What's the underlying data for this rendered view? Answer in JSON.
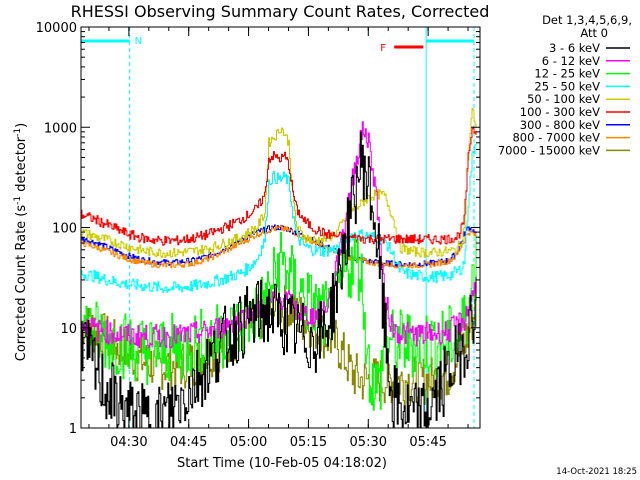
{
  "chart_data": {
    "type": "line",
    "title": "RHESSI Observing Summary Count Rates, Corrected",
    "xlabel": "Start Time (10-Feb-05 04:18:02)",
    "ylabel_main": "Corrected Count Rate (s",
    "ylabel_sup1": "-1",
    "ylabel_mid": " detector",
    "ylabel_sup2": "-1",
    "ylabel_end": ")",
    "x_unit": "minutes after 04:18:02",
    "xlim": [
      0,
      100
    ],
    "ylim": [
      1,
      10000
    ],
    "yscale": "log",
    "x_ticks": [
      {
        "value": 12,
        "label": "04:30"
      },
      {
        "value": 27,
        "label": "04:45"
      },
      {
        "value": 42,
        "label": "05:00"
      },
      {
        "value": 57,
        "label": "05:15"
      },
      {
        "value": 72,
        "label": "05:30"
      },
      {
        "value": 87,
        "label": "05:45"
      }
    ],
    "y_ticks": [
      {
        "value": 1,
        "label": "1"
      },
      {
        "value": 10,
        "label": "10"
      },
      {
        "value": 100,
        "label": "100"
      },
      {
        "value": 1000,
        "label": "1000"
      },
      {
        "value": 10000,
        "label": "10000"
      }
    ],
    "legend_header": [
      "Det 1,3,4,5,6,9,",
      "Att 0"
    ],
    "series": [
      {
        "name": "3 - 6 keV",
        "color": "#000000",
        "x": [
          0,
          2,
          4,
          6,
          8,
          10,
          12,
          14,
          16,
          18,
          20,
          22,
          24,
          26,
          28,
          30,
          32,
          34,
          36,
          38,
          40,
          42,
          44,
          46,
          48,
          50,
          52,
          54,
          56,
          58,
          60,
          62,
          64,
          66,
          68,
          69,
          70,
          71,
          72,
          73,
          74,
          75,
          76,
          77,
          78,
          80,
          82,
          84,
          86,
          88,
          90,
          92,
          94,
          95,
          96,
          97,
          98,
          99
        ],
        "y": [
          8,
          5,
          3.5,
          2.5,
          2,
          1.6,
          1.4,
          1.3,
          1.2,
          1.2,
          1.3,
          1.5,
          1.8,
          2.2,
          2.8,
          3.5,
          4.5,
          6,
          7.5,
          9,
          10.5,
          12,
          13.5,
          14.5,
          14,
          12.5,
          10.5,
          9,
          8,
          7.5,
          8.5,
          12,
          25,
          70,
          160,
          280,
          450,
          400,
          260,
          160,
          80,
          30,
          10,
          4,
          2,
          1.6,
          1.4,
          1.3,
          1.4,
          1.8,
          2.5,
          3.5,
          5,
          6,
          7,
          9,
          14,
          18
        ]
      },
      {
        "name": "6 - 12 keV",
        "color": "#ff00ff",
        "x": [
          0,
          4,
          8,
          12,
          16,
          20,
          24,
          28,
          32,
          36,
          40,
          44,
          48,
          50,
          52,
          54,
          56,
          58,
          60,
          62,
          64,
          66,
          68,
          70,
          71,
          72,
          73,
          74,
          75,
          76,
          78,
          80,
          84,
          88,
          92,
          96,
          98,
          99
        ],
        "y": [
          11,
          9.5,
          8.8,
          8.3,
          8.2,
          8.2,
          8.3,
          8.6,
          9.3,
          10.5,
          12.5,
          15,
          18,
          20,
          18,
          15,
          13.5,
          13,
          14,
          18,
          40,
          110,
          300,
          800,
          950,
          700,
          400,
          200,
          60,
          20,
          10,
          8.8,
          8.6,
          8.7,
          9.2,
          12,
          20,
          30
        ]
      },
      {
        "name": "12 - 25 keV",
        "color": "#00ff00",
        "x": [
          0,
          4,
          8,
          12,
          16,
          20,
          24,
          28,
          32,
          36,
          40,
          42,
          44,
          46,
          48,
          50,
          52,
          54,
          56,
          58,
          60,
          62,
          64,
          66,
          68,
          70,
          71,
          72,
          73,
          74,
          75,
          76,
          78,
          80,
          84,
          88,
          92,
          95,
          97,
          98,
          99
        ],
        "y": [
          11,
          8.5,
          7.5,
          6.5,
          6,
          6,
          6.3,
          6.8,
          7.5,
          8.5,
          10,
          12,
          14,
          18,
          28,
          48,
          35,
          25,
          20,
          16,
          14,
          13,
          18,
          35,
          45,
          40,
          12,
          4,
          3,
          2.5,
          3,
          8,
          7,
          7,
          7,
          7,
          7.5,
          9,
          15,
          30,
          50
        ]
      },
      {
        "name": "25 - 50 keV",
        "color": "#00ffff",
        "x": [
          0,
          4,
          8,
          12,
          16,
          20,
          24,
          28,
          32,
          36,
          40,
          42,
          44,
          46,
          47,
          48,
          49,
          50,
          51,
          52,
          53,
          54,
          56,
          58,
          60,
          62,
          64,
          66,
          68,
          70,
          72,
          74,
          76,
          78,
          80,
          84,
          88,
          92,
          95,
          96,
          97,
          98,
          99
        ],
        "y": [
          35,
          32,
          29,
          27,
          26,
          25,
          25,
          26,
          28,
          31,
          35,
          40,
          48,
          75,
          280,
          320,
          310,
          300,
          320,
          280,
          140,
          80,
          65,
          60,
          58,
          59,
          62,
          75,
          85,
          85,
          82,
          80,
          75,
          55,
          36,
          33,
          32,
          33,
          38,
          45,
          180,
          500,
          750
        ]
      },
      {
        "name": "50 - 100 keV",
        "color": "#cccc00",
        "x": [
          0,
          4,
          8,
          12,
          16,
          20,
          24,
          28,
          32,
          36,
          40,
          42,
          44,
          46,
          47,
          48,
          49,
          50,
          51,
          52,
          53,
          54,
          56,
          58,
          60,
          62,
          64,
          66,
          68,
          70,
          72,
          74,
          76,
          78,
          80,
          84,
          88,
          92,
          94,
          95,
          96,
          97,
          98,
          99
        ],
        "y": [
          90,
          80,
          72,
          64,
          58,
          56,
          56,
          58,
          62,
          70,
          80,
          90,
          100,
          140,
          700,
          780,
          850,
          1000,
          850,
          700,
          200,
          100,
          80,
          75,
          75,
          80,
          90,
          120,
          150,
          170,
          200,
          215,
          210,
          130,
          62,
          57,
          56,
          58,
          60,
          70,
          100,
          500,
          1500,
          1000
        ]
      },
      {
        "name": "100 - 300 keV",
        "color": "#ff0000",
        "x": [
          0,
          4,
          8,
          12,
          16,
          20,
          24,
          28,
          32,
          36,
          40,
          42,
          44,
          46,
          47,
          48,
          49,
          50,
          51,
          52,
          53,
          54,
          56,
          58,
          60,
          62,
          64,
          66,
          68,
          70,
          72,
          74,
          76,
          78,
          80,
          84,
          88,
          92,
          94,
          95,
          96,
          97,
          98,
          99
        ],
        "y": [
          135,
          118,
          100,
          85,
          77,
          74,
          74,
          78,
          86,
          100,
          120,
          135,
          155,
          210,
          480,
          520,
          500,
          480,
          520,
          420,
          230,
          150,
          115,
          100,
          90,
          85,
          82,
          80,
          79,
          78,
          77,
          77,
          77,
          77,
          77,
          76,
          76,
          77,
          80,
          90,
          120,
          500,
          1000,
          900
        ]
      },
      {
        "name": "300 - 800 keV",
        "color": "#0000ff",
        "x": [
          0,
          4,
          8,
          12,
          16,
          20,
          24,
          28,
          32,
          36,
          40,
          44,
          48,
          50,
          52,
          56,
          60,
          64,
          68,
          72,
          76,
          80,
          84,
          88,
          92,
          94,
          96,
          97,
          98,
          99
        ],
        "y": [
          78,
          70,
          60,
          52,
          47,
          45,
          45,
          47,
          52,
          62,
          75,
          90,
          100,
          100,
          96,
          82,
          68,
          58,
          50,
          46,
          44,
          43,
          43,
          44,
          47,
          55,
          85,
          100,
          95,
          85
        ]
      },
      {
        "name": "800 - 7000 keV",
        "color": "#ff8800",
        "x": [
          0,
          4,
          8,
          12,
          16,
          20,
          24,
          28,
          32,
          36,
          40,
          44,
          48,
          50,
          52,
          56,
          60,
          64,
          68,
          72,
          76,
          80,
          84,
          88,
          92,
          94,
          96,
          97,
          98,
          99
        ],
        "y": [
          70,
          63,
          55,
          48,
          44,
          42,
          42,
          44,
          49,
          58,
          70,
          85,
          97,
          98,
          94,
          80,
          66,
          56,
          49,
          45,
          43,
          42,
          42,
          43,
          46,
          52,
          75,
          90,
          88,
          80
        ]
      },
      {
        "name": "7000 - 15000 keV",
        "color": "#888800",
        "x": [
          0,
          4,
          8,
          12,
          16,
          20,
          24,
          28,
          32,
          36,
          40,
          44,
          48,
          50,
          52,
          56,
          60,
          64,
          66,
          68,
          70,
          72,
          76,
          80,
          84,
          88,
          92,
          94,
          96,
          97,
          98,
          99
        ],
        "y": [
          11,
          9,
          7,
          5.5,
          4.5,
          4.2,
          4.2,
          4.5,
          5.5,
          7,
          9,
          12,
          15,
          16,
          15,
          12,
          9,
          7,
          5,
          3.5,
          3,
          3,
          3,
          3,
          3,
          3,
          3.5,
          5,
          7,
          9,
          12,
          15
        ]
      }
    ],
    "annotations": [
      {
        "text": "N",
        "color": "#00ffff"
      },
      {
        "text": "F",
        "color": "#ff0000"
      }
    ]
  },
  "footer_date": "14-Oct-2021 18:25"
}
